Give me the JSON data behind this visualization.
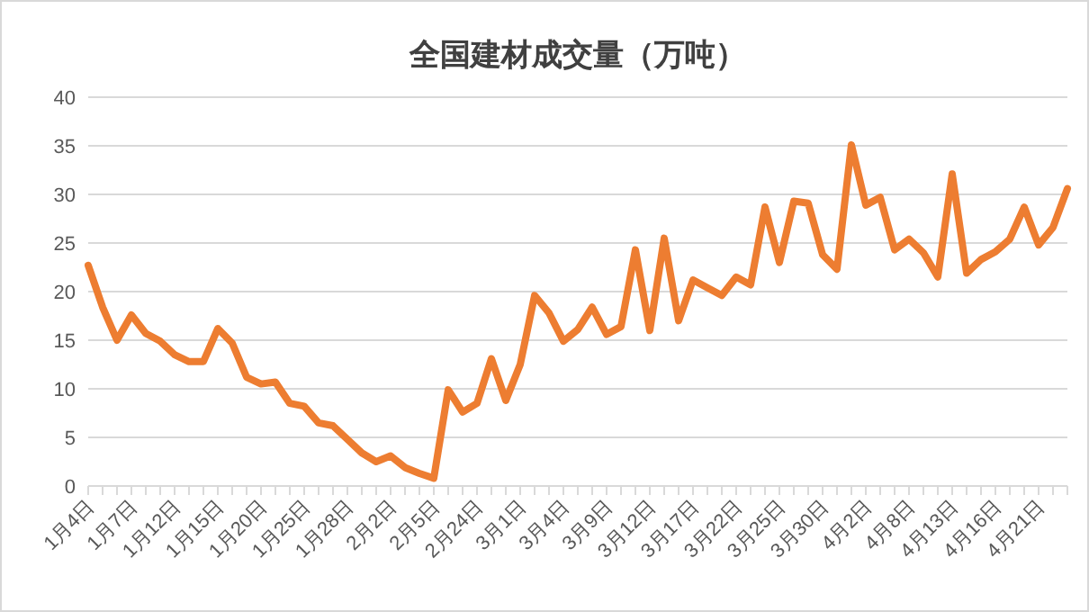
{
  "chart_data": {
    "type": "line",
    "title": "全国建材成交量（万吨）",
    "categories": [
      "1月4日",
      null,
      null,
      "1月7日",
      null,
      null,
      "1月12日",
      null,
      null,
      "1月15日",
      null,
      null,
      "1月20日",
      null,
      null,
      "1月25日",
      null,
      null,
      "1月28日",
      null,
      null,
      "2月2日",
      null,
      null,
      "2月5日",
      null,
      null,
      "2月24日",
      null,
      null,
      "3月1日",
      null,
      null,
      "3月4日",
      null,
      null,
      "3月9日",
      null,
      null,
      "3月12日",
      null,
      null,
      "3月17日",
      null,
      null,
      "3月22日",
      null,
      null,
      "3月25日",
      null,
      null,
      "3月30日",
      null,
      null,
      "4月2日",
      null,
      null,
      "4月8日",
      null,
      null,
      "4月13日",
      null,
      null,
      "4月16日",
      null,
      null,
      "4月21日",
      null,
      null
    ],
    "series": [
      {
        "color": "#ed7d31",
        "values": [
          22.7,
          18.4,
          15.0,
          17.6,
          15.7,
          14.9,
          13.5,
          12.8,
          12.8,
          16.2,
          14.7,
          11.2,
          10.5,
          10.7,
          8.5,
          8.2,
          6.5,
          6.2,
          4.8,
          3.4,
          2.5,
          3.1,
          1.9,
          1.3,
          0.8,
          9.9,
          7.6,
          8.5,
          13.1,
          8.8,
          12.5,
          19.6,
          17.8,
          14.9,
          16.1,
          18.4,
          15.6,
          16.4,
          24.3,
          16.0,
          25.5,
          17.0,
          21.2,
          20.4,
          19.6,
          21.5,
          20.7,
          28.7,
          23.0,
          29.3,
          29.1,
          23.8,
          22.3,
          35.1,
          28.9,
          29.7,
          24.3,
          25.4,
          24.0,
          21.5,
          32.1,
          21.9,
          23.3,
          24.1,
          25.4,
          28.7,
          24.8,
          26.6,
          30.6
        ]
      }
    ],
    "ylim": [
      0,
      40
    ],
    "yticks": [
      0,
      5,
      10,
      15,
      20,
      25,
      30,
      35,
      40
    ],
    "grid": "y",
    "marker": "none",
    "line_style": "solid"
  }
}
